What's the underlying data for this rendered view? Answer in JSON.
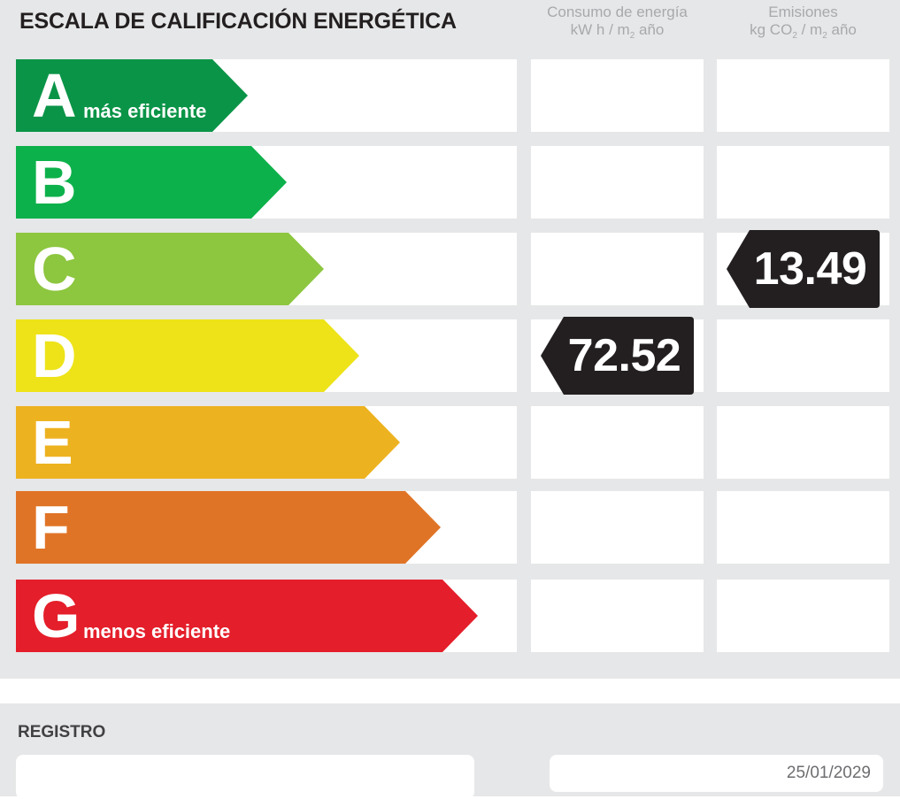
{
  "title": "ESCALA DE CALIFICACIÓN ENERGÉTICA",
  "columns": {
    "consumo": {
      "line1": "Consumo de energía",
      "line2_a": "kW h / m",
      "line2_sub": "2",
      "line2_b": " año"
    },
    "emisiones": {
      "line1": "Emisiones",
      "line2_a": "kg CO",
      "line2_sub": "2",
      "line2_b": " / m",
      "line2_sub2": "2",
      "line2_c": " año"
    }
  },
  "ratings": [
    {
      "letter": "A",
      "label": "más eficiente",
      "color": "#0a9447"
    },
    {
      "letter": "B",
      "label": "",
      "color": "#0db14b"
    },
    {
      "letter": "C",
      "label": "",
      "color": "#8dc63f"
    },
    {
      "letter": "D",
      "label": "",
      "color": "#ede318"
    },
    {
      "letter": "E",
      "label": "",
      "color": "#edb21f"
    },
    {
      "letter": "F",
      "label": "",
      "color": "#e07426"
    },
    {
      "letter": "G",
      "label": "menos eficiente",
      "color": "#e41e2a"
    }
  ],
  "consumo_value": {
    "value": "72.52",
    "rating": "D"
  },
  "emisiones_value": {
    "value": "13.49",
    "rating": "C"
  },
  "marker_color": "#231f20",
  "registro": {
    "label": "REGISTRO",
    "number": "",
    "date": "25/01/2029"
  }
}
